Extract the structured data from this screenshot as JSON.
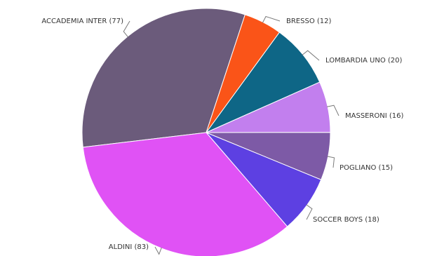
{
  "chart_data": {
    "type": "pie",
    "title": "",
    "slices": [
      {
        "label": "ACCADEMIA INTER (77)",
        "value": 77,
        "color": "#6b5b7b"
      },
      {
        "label": "BRESSO (12)",
        "value": 12,
        "color": "#fa5418"
      },
      {
        "label": "LOMBARDIA UNO (20)",
        "value": 20,
        "color": "#0e6686"
      },
      {
        "label": "MASSERONI (16)",
        "value": 16,
        "color": "#c27fee"
      },
      {
        "label": "POGLIANO (15)",
        "value": 15,
        "color": "#7d5aa6"
      },
      {
        "label": "SOCCER BOYS (18)",
        "value": 18,
        "color": "#5d40e2"
      },
      {
        "label": "ALDINI (83)",
        "value": 83,
        "color": "#e052f5"
      }
    ]
  }
}
